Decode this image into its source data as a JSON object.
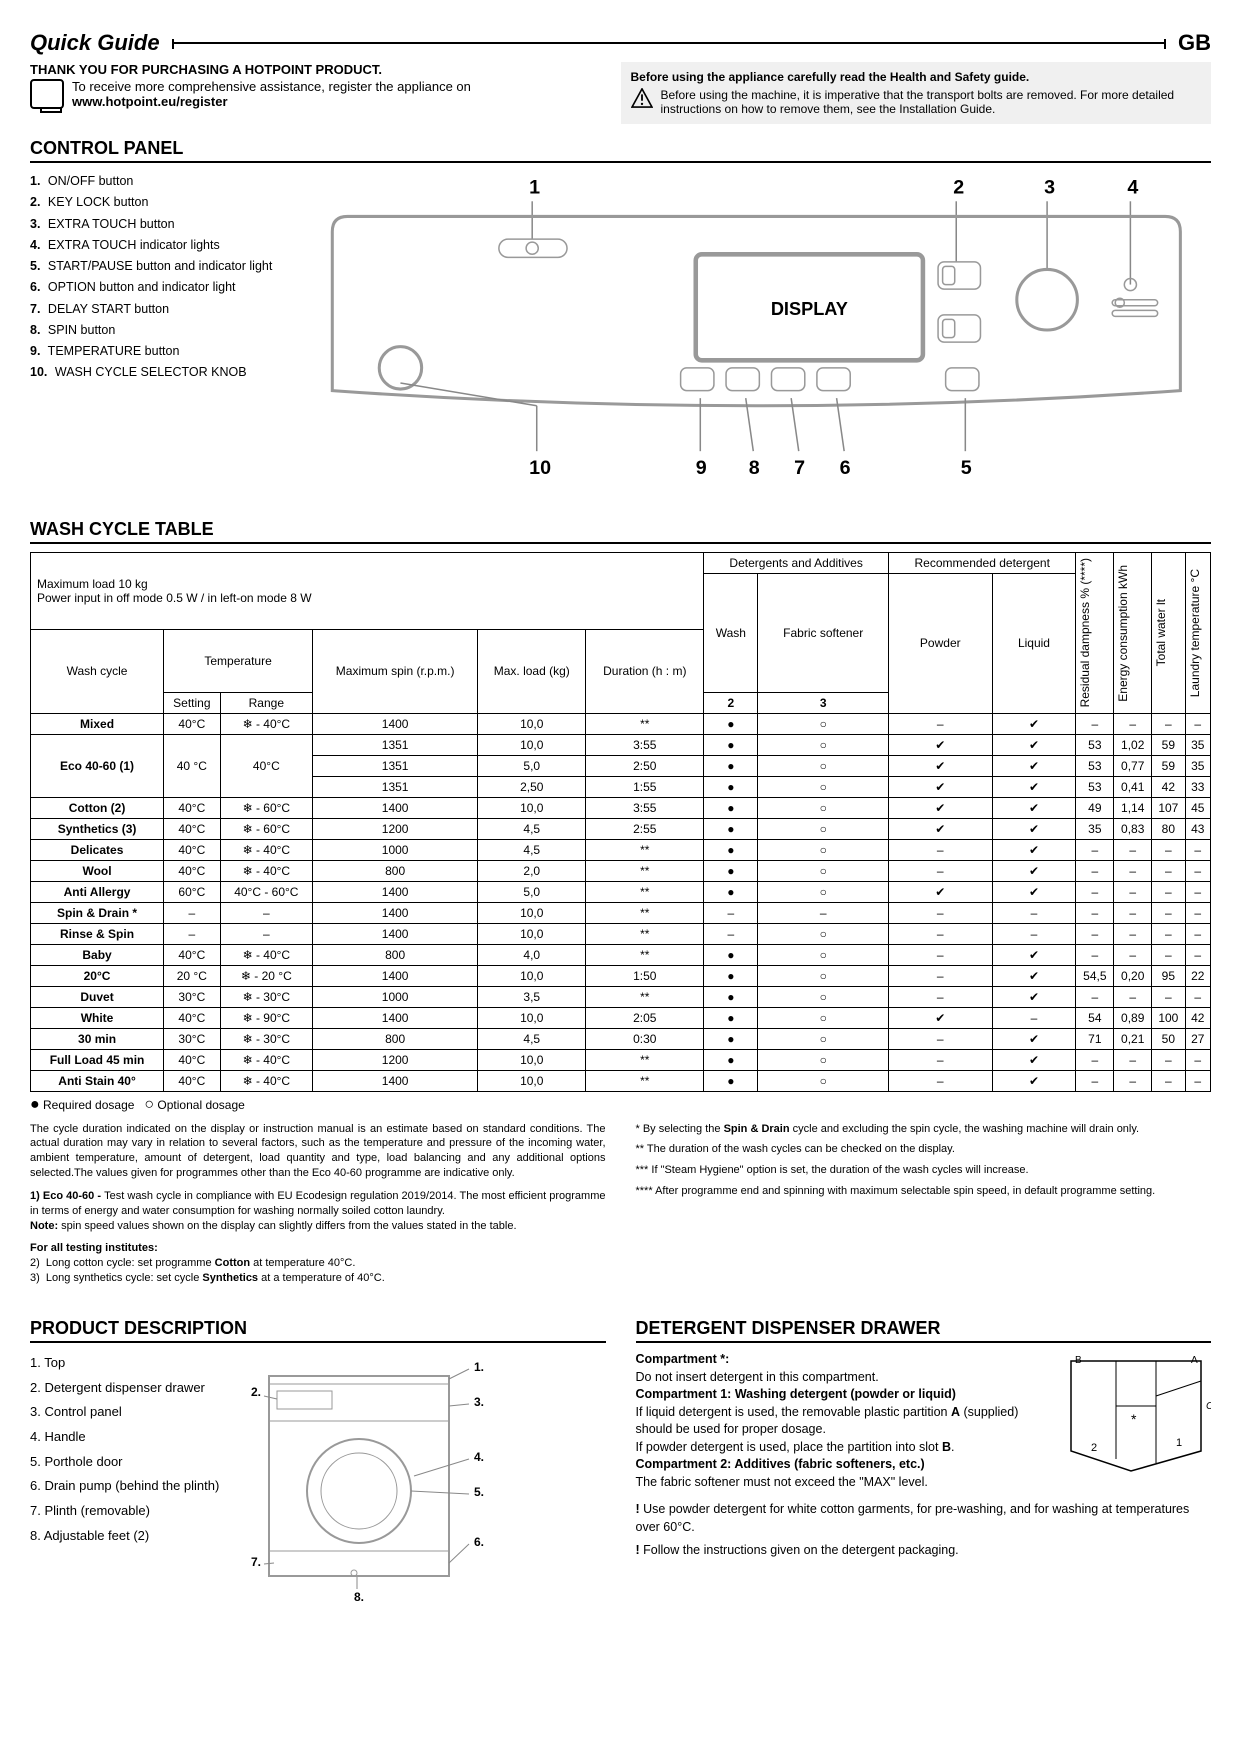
{
  "header": {
    "title": "Quick Guide",
    "country": "GB"
  },
  "intro": {
    "thank": "THANK YOU FOR PURCHASING A HOTPOINT PRODUCT.",
    "reg1": "To receive more comprehensive assistance, register the appliance on",
    "reg2": "www.hotpoint.eu/register",
    "warn_b": "Before using the appliance carefully read the Health and Safety guide.",
    "warn_t": "Before using the machine, it is imperative that the transport bolts are removed. For more detailed instructions on how to remove them, see the Installation Guide."
  },
  "sections": {
    "cp": "CONTROL PANEL",
    "wct": "WASH CYCLE TABLE",
    "pd": "PRODUCT DESCRIPTION",
    "ddd": "DETERGENT DISPENSER DRAWER"
  },
  "cp_items": [
    "ON/OFF button",
    "KEY LOCK button",
    "EXTRA TOUCH button",
    "EXTRA TOUCH indicator lights",
    "START/PAUSE button and indicator light",
    "OPTION button and indicator light",
    "DELAY START button",
    "SPIN button",
    "TEMPERATURE button",
    "WASH CYCLE SELECTOR KNOB"
  ],
  "cp_display": "DISPLAY",
  "table": {
    "caption_l": "Maximum load 10 kg",
    "caption_p": "Power input in off mode 0.5 W / in left-on mode 8 W",
    "h": {
      "cycle": "Wash cycle",
      "temp": "Temperature",
      "setting": "Setting",
      "range": "Range",
      "spin": "Maximum spin (r.p.m.)",
      "load": "Max. load (kg)",
      "dur": "Duration (h : m)",
      "da": "Detergents and Additives",
      "wash": "Wash",
      "soft": "Fabric softener",
      "rd": "Recommended detergent",
      "pow": "Powder",
      "liq": "Liquid",
      "res": "Residual dampness % (****)",
      "en": "Energy consumption kWh",
      "tw": "Total water lt",
      "lt": "Laundry temperature °C",
      "c2": "2",
      "c3": "3"
    },
    "rows": [
      {
        "name": "Mixed",
        "set": "40°C",
        "rng": "❄ - 40°C",
        "spin": "1400",
        "load": "10,0",
        "dur": "**",
        "w": "●",
        "s": "○",
        "p": "–",
        "l": "✔",
        "res": "–",
        "en": "–",
        "tw": "–",
        "lt": "–"
      },
      {
        "name": "Eco 40-60 (1)",
        "set": "40 °C",
        "rng": "40°C",
        "spin": "1351",
        "load": "10,0",
        "dur": "3:55",
        "w": "●",
        "s": "○",
        "p": "✔",
        "l": "✔",
        "res": "53",
        "en": "1,02",
        "tw": "59",
        "lt": "35",
        "rowspan": 3
      },
      {
        "spin": "1351",
        "load": "5,0",
        "dur": "2:50",
        "w": "●",
        "s": "○",
        "p": "✔",
        "l": "✔",
        "res": "53",
        "en": "0,77",
        "tw": "59",
        "lt": "35"
      },
      {
        "spin": "1351",
        "load": "2,50",
        "dur": "1:55",
        "w": "●",
        "s": "○",
        "p": "✔",
        "l": "✔",
        "res": "53",
        "en": "0,41",
        "tw": "42",
        "lt": "33"
      },
      {
        "name": "Cotton (2)",
        "set": "40°C",
        "rng": "❄ - 60°C",
        "spin": "1400",
        "load": "10,0",
        "dur": "3:55",
        "w": "●",
        "s": "○",
        "p": "✔",
        "l": "✔",
        "res": "49",
        "en": "1,14",
        "tw": "107",
        "lt": "45"
      },
      {
        "name": "Synthetics (3)",
        "set": "40°C",
        "rng": "❄ - 60°C",
        "spin": "1200",
        "load": "4,5",
        "dur": "2:55",
        "w": "●",
        "s": "○",
        "p": "✔",
        "l": "✔",
        "res": "35",
        "en": "0,83",
        "tw": "80",
        "lt": "43"
      },
      {
        "name": "Delicates",
        "set": "40°C",
        "rng": "❄ - 40°C",
        "spin": "1000",
        "load": "4,5",
        "dur": "**",
        "w": "●",
        "s": "○",
        "p": "–",
        "l": "✔",
        "res": "–",
        "en": "–",
        "tw": "–",
        "lt": "–"
      },
      {
        "name": "Wool",
        "set": "40°C",
        "rng": "❄ - 40°C",
        "spin": "800",
        "load": "2,0",
        "dur": "**",
        "w": "●",
        "s": "○",
        "p": "–",
        "l": "✔",
        "res": "–",
        "en": "–",
        "tw": "–",
        "lt": "–"
      },
      {
        "name": "Anti Allergy",
        "set": "60°C",
        "rng": "40°C - 60°C",
        "spin": "1400",
        "load": "5,0",
        "dur": "**",
        "w": "●",
        "s": "○",
        "p": "✔",
        "l": "✔",
        "res": "–",
        "en": "–",
        "tw": "–",
        "lt": "–"
      },
      {
        "name": "Spin & Drain *",
        "set": "–",
        "rng": "–",
        "spin": "1400",
        "load": "10,0",
        "dur": "**",
        "w": "–",
        "s": "–",
        "p": "–",
        "l": "–",
        "res": "–",
        "en": "–",
        "tw": "–",
        "lt": "–"
      },
      {
        "name": "Rinse & Spin",
        "set": "–",
        "rng": "–",
        "spin": "1400",
        "load": "10,0",
        "dur": "**",
        "w": "–",
        "s": "○",
        "p": "–",
        "l": "–",
        "res": "–",
        "en": "–",
        "tw": "–",
        "lt": "–"
      },
      {
        "name": "Baby",
        "set": "40°C",
        "rng": "❄ - 40°C",
        "spin": "800",
        "load": "4,0",
        "dur": "**",
        "w": "●",
        "s": "○",
        "p": "–",
        "l": "✔",
        "res": "–",
        "en": "–",
        "tw": "–",
        "lt": "–"
      },
      {
        "name": "20°C",
        "set": "20 °C",
        "rng": "❄ - 20 °C",
        "spin": "1400",
        "load": "10,0",
        "dur": "1:50",
        "w": "●",
        "s": "○",
        "p": "–",
        "l": "✔",
        "res": "54,5",
        "en": "0,20",
        "tw": "95",
        "lt": "22"
      },
      {
        "name": "Duvet",
        "set": "30°C",
        "rng": "❄ - 30°C",
        "spin": "1000",
        "load": "3,5",
        "dur": "**",
        "w": "●",
        "s": "○",
        "p": "–",
        "l": "✔",
        "res": "–",
        "en": "–",
        "tw": "–",
        "lt": "–"
      },
      {
        "name": "White",
        "set": "40°C",
        "rng": "❄ - 90°C",
        "spin": "1400",
        "load": "10,0",
        "dur": "2:05",
        "w": "●",
        "s": "○",
        "p": "✔",
        "l": "–",
        "res": "54",
        "en": "0,89",
        "tw": "100",
        "lt": "42"
      },
      {
        "name": "30 min",
        "set": "30°C",
        "rng": "❄ - 30°C",
        "spin": "800",
        "load": "4,5",
        "dur": "0:30",
        "w": "●",
        "s": "○",
        "p": "–",
        "l": "✔",
        "res": "71",
        "en": "0,21",
        "tw": "50",
        "lt": "27"
      },
      {
        "name": "Full Load 45 min",
        "set": "40°C",
        "rng": "❄ - 40°C",
        "spin": "1200",
        "load": "10,0",
        "dur": "**",
        "w": "●",
        "s": "○",
        "p": "–",
        "l": "✔",
        "res": "–",
        "en": "–",
        "tw": "–",
        "lt": "–"
      },
      {
        "name": "Anti Stain 40°",
        "set": "40°C",
        "rng": "❄ - 40°C",
        "spin": "1400",
        "load": "10,0",
        "dur": "**",
        "w": "●",
        "s": "○",
        "p": "–",
        "l": "✔",
        "res": "–",
        "en": "–",
        "tw": "–",
        "lt": "–"
      }
    ],
    "legend": "● Required dosage   ○ Optional dosage"
  },
  "notes": {
    "l1": "The cycle duration indicated on the display or instruction manual is an estimate based on standard conditions. The actual duration may vary in relation to several factors, such as the temperature and pressure of the incoming water, ambient temperature, amount of detergent, load quantity and type, load balancing and any additional options selected.The values given for programmes other than the Eco 40-60 programme are indicative only.",
    "l2b": "1) Eco 40-60 - ",
    "l2": "Test wash cycle in compliance with EU Ecodesign regulation 2019/2014. The most efficient programme in terms of energy and water consumption for washing normally soiled cotton laundry.",
    "l2n": "Note: ",
    "l2nt": "spin speed values shown on the display can slightly differs from the values stated in the table.",
    "l3b": "For all testing institutes:",
    "l3_2": "2)  Long cotton cycle: set programme Cotton at temperature 40°C.",
    "l3_3": "3)  Long synthetics cycle: set cycle Synthetics at a temperature of 40°C.",
    "r1": "* By selecting the Spin & Drain cycle and excluding the spin cycle, the washing machine will drain only.",
    "r2": "** The duration of the wash cycles can be checked on the display.",
    "r3": "*** If \"Steam Hygiene\" option is set, the duration of the wash cycles will increase.",
    "r4": "**** After programme end and spinning with maximum selectable spin speed, in default programme setting."
  },
  "pd_items": [
    "Top",
    "Detergent dispenser drawer",
    "Control panel",
    "Handle",
    "Porthole door",
    "Drain pump (behind the plinth)",
    "Plinth (removable)",
    "Adjustable feet (2)"
  ],
  "ddd": {
    "c0b": "Compartment *:",
    "c0": "Do not insert detergent in this compartment.",
    "c1b": "Compartment 1: Washing detergent (powder or liquid)",
    "c1a": "If liquid detergent is used, the removable plastic partition A (supplied) should be used for proper dosage.",
    "c1p": "If powder detergent is used, place the partition into slot B.",
    "c2b": "Compartment 2: Additives (fabric softeners, etc.)",
    "c2": "The fabric softener must not exceed the \"MAX\" level.",
    "e1": "! Use powder detergent for white cotton garments, for pre-washing, and for washing at temperatures over 60°C.",
    "e2": "! Follow the instructions given on the detergent packaging."
  }
}
